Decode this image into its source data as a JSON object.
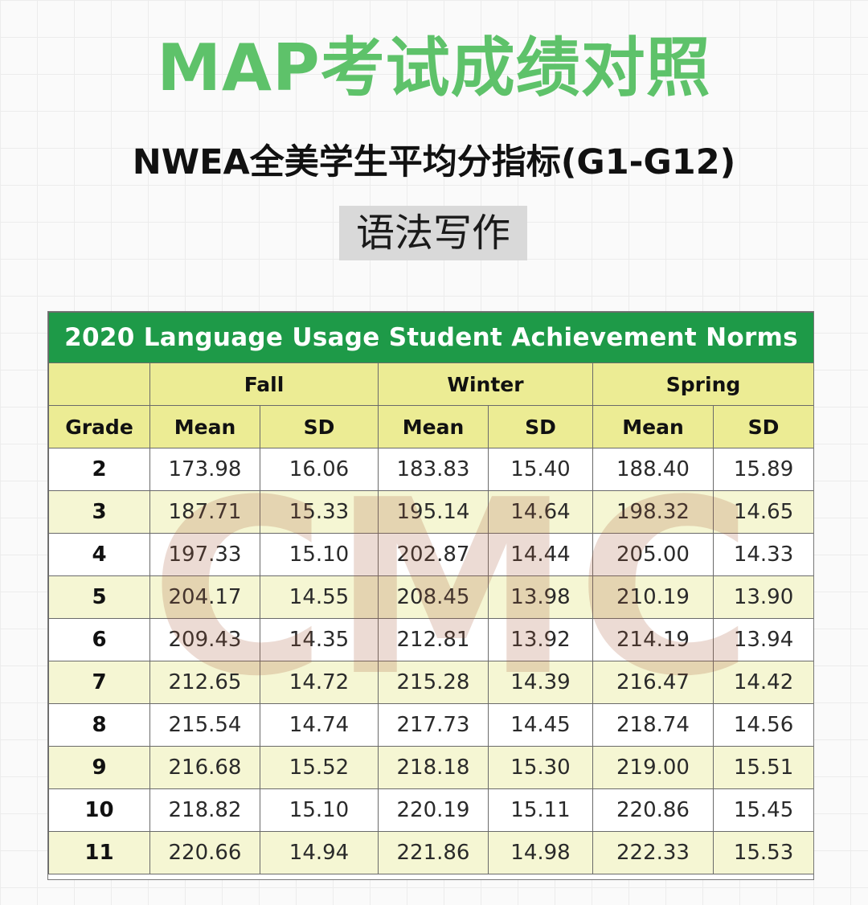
{
  "header": {
    "title": "MAP考试成绩对照",
    "subtitle": "NWEA全美学生平均分指标(G1-G12)",
    "section_tag": "语法写作"
  },
  "table": {
    "caption": "2020 Language Usage Student Achievement Norms",
    "seasons": [
      "Fall",
      "Winter",
      "Spring"
    ],
    "columns": [
      "Grade",
      "Mean",
      "SD",
      "Mean",
      "SD",
      "Mean",
      "SD"
    ],
    "rows": [
      [
        "2",
        "173.98",
        "16.06",
        "183.83",
        "15.40",
        "188.40",
        "15.89"
      ],
      [
        "3",
        "187.71",
        "15.33",
        "195.14",
        "14.64",
        "198.32",
        "14.65"
      ],
      [
        "4",
        "197.33",
        "15.10",
        "202.87",
        "14.44",
        "205.00",
        "14.33"
      ],
      [
        "5",
        "204.17",
        "14.55",
        "208.45",
        "13.98",
        "210.19",
        "13.90"
      ],
      [
        "6",
        "209.43",
        "14.35",
        "212.81",
        "13.92",
        "214.19",
        "13.94"
      ],
      [
        "7",
        "212.65",
        "14.72",
        "215.28",
        "14.39",
        "216.47",
        "14.42"
      ],
      [
        "8",
        "215.54",
        "14.74",
        "217.73",
        "14.45",
        "218.74",
        "14.56"
      ],
      [
        "9",
        "216.68",
        "15.52",
        "218.18",
        "15.30",
        "219.00",
        "15.51"
      ],
      [
        "10",
        "218.82",
        "15.10",
        "220.19",
        "15.11",
        "220.86",
        "15.45"
      ],
      [
        "11",
        "220.66",
        "14.94",
        "221.86",
        "14.98",
        "222.33",
        "15.53"
      ]
    ]
  },
  "watermark": "CMC",
  "colors": {
    "title_green": "#5ec26a",
    "caption_green": "#1e9a48",
    "header_yellow": "#ecec94",
    "row_stripe": "#f5f6d3",
    "tag_gray": "#d9d9d9"
  }
}
